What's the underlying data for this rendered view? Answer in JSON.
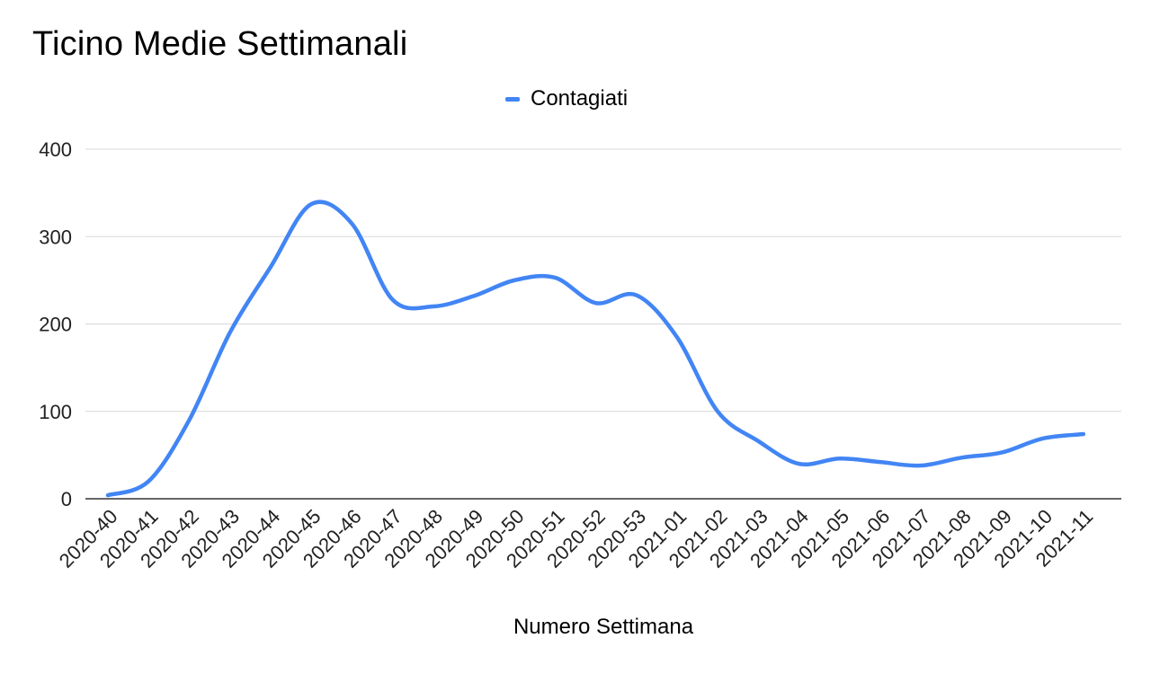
{
  "chart_data": {
    "type": "line",
    "title": "Ticino Medie Settimanali",
    "xlabel": "Numero Settimana",
    "ylabel": "",
    "ylim": [
      0,
      400
    ],
    "yticks": [
      "0",
      "100",
      "200",
      "300",
      "400"
    ],
    "grid": true,
    "legend_position": "top-center",
    "categories": [
      "2020-40",
      "2020-41",
      "2020-42",
      "2020-43",
      "2020-44",
      "2020-45",
      "2020-46",
      "2020-47",
      "2020-48",
      "2020-49",
      "2020-50",
      "2020-51",
      "2020-52",
      "2020-53",
      "2021-01",
      "2021-02",
      "2021-03",
      "2021-04",
      "2021-05",
      "2021-06",
      "2021-07",
      "2021-08",
      "2021-09",
      "2021-10",
      "2021-11"
    ],
    "series": [
      {
        "name": "Contagiati",
        "color": "#4285f4",
        "values": [
          4,
          20,
          90,
          190,
          265,
          337,
          315,
          228,
          220,
          232,
          250,
          253,
          224,
          233,
          185,
          100,
          66,
          40,
          46,
          42,
          38,
          47,
          53,
          69,
          74
        ]
      }
    ]
  }
}
